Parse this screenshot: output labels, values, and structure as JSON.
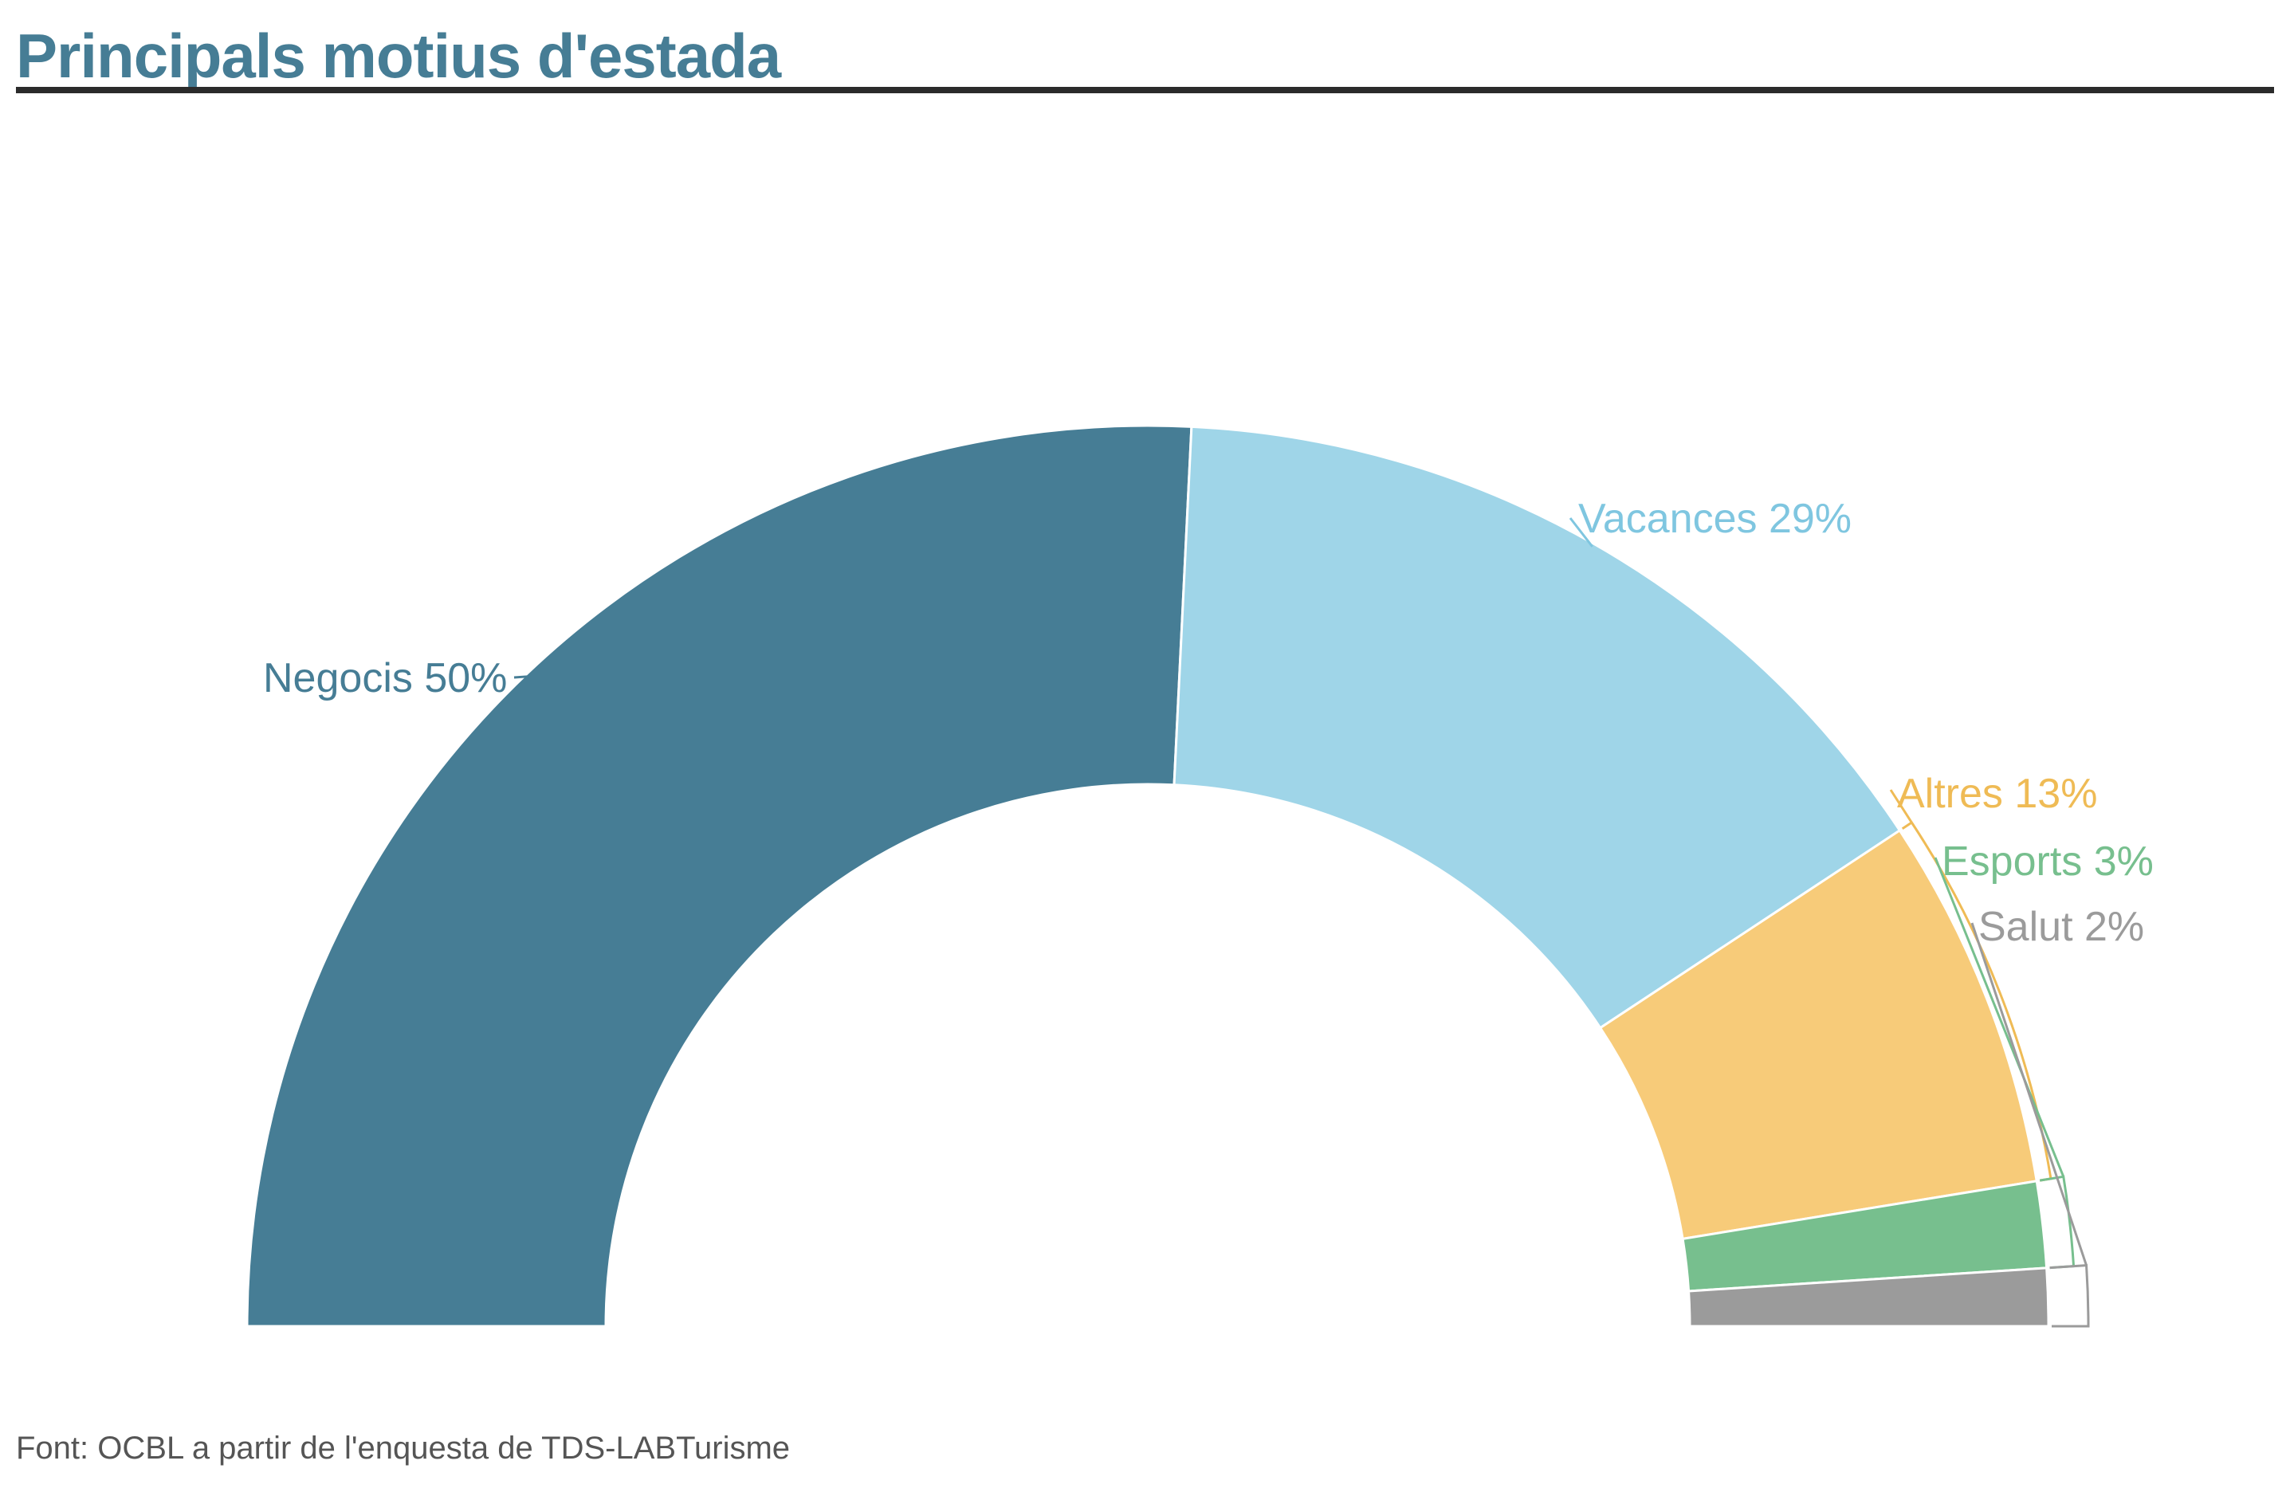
{
  "chart_data": {
    "type": "pie",
    "variant": "semicircle-donut",
    "title": "Principals motius d'estada",
    "source": "Font: OCBL a partir de l'enquesta de TDS-LABTurisme",
    "legend": "labels-on-slices",
    "series": [
      {
        "name": "Negocis",
        "value": 50,
        "label": "Negocis 50%",
        "color": "#467d95"
      },
      {
        "name": "Vacances",
        "value": 29,
        "label": "Vacances 29%",
        "color": "#9fd5e8"
      },
      {
        "name": "Altres",
        "value": 13,
        "label": "Altres 13%",
        "color": "#f7cb79"
      },
      {
        "name": "Esports",
        "value": 3,
        "label": "Esports 3%",
        "color": "#77bf8e"
      },
      {
        "name": "Salut",
        "value": 2,
        "label": "Salut 2%",
        "color": "#9b9b9b"
      }
    ]
  }
}
